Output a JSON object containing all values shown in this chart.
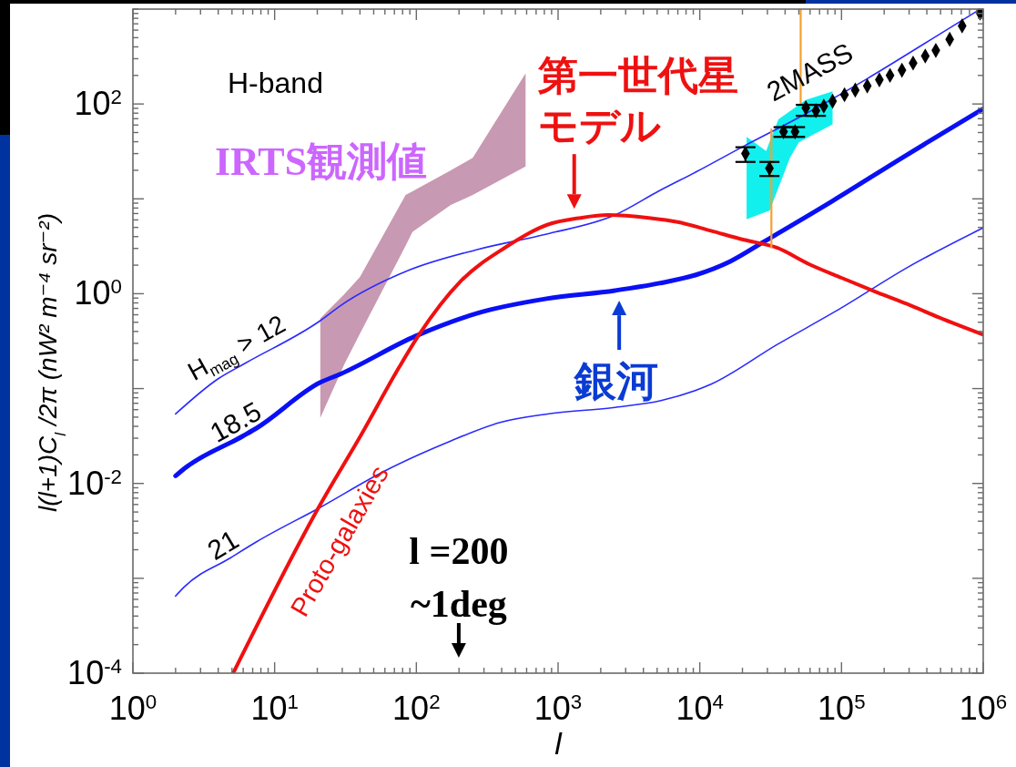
{
  "chart_data": {
    "type": "line",
    "log": "xy",
    "xlabel": "l",
    "ylabel": "l(l+1)C$_{l}$ /2π (nW² m⁻⁴ sr⁻²)",
    "xlim": [
      1,
      1000000
    ],
    "ylim": [
      0.0001,
      1000
    ],
    "xticks": [
      {
        "value": 1,
        "label": "10$^{0}$"
      },
      {
        "value": 10,
        "label": "10$^{1}$"
      },
      {
        "value": 100,
        "label": "10$^{2}$"
      },
      {
        "value": 1000,
        "label": "10$^{3}$"
      },
      {
        "value": 10000,
        "label": "10$^{4}$"
      },
      {
        "value": 100000,
        "label": "10$^{5}$"
      },
      {
        "value": 1000000,
        "label": "10$^{6}$"
      }
    ],
    "yticks": [
      {
        "value": 0.0001,
        "label": "10$^{-4}$"
      },
      {
        "value": 0.001,
        "label": null
      },
      {
        "value": 0.01,
        "label": "10$^{-2}$"
      },
      {
        "value": 0.1,
        "label": null
      },
      {
        "value": 1,
        "label": "10$^{0}$"
      },
      {
        "value": 10,
        "label": null
      },
      {
        "value": 100,
        "label": "10$^{2}$"
      }
    ],
    "annotations": [
      "H-band",
      "IRTS観測値",
      {
        "text": "第一世代星モデル",
        "x": 1300,
        "y": 6.3
      },
      {
        "text": "銀河",
        "x": 2700,
        "y": 1.1
      },
      "l =200 ~1deg",
      {
        "text": "H$_{mag}$ > 12",
        "x": 6.2,
        "y": 0.185
      },
      {
        "text": "18.5",
        "x": 6,
        "y": 0.0317
      },
      {
        "text": "21",
        "x": 4.9,
        "y": 0.00165
      }
    ],
    "series": [
      {
        "type": "area",
        "color": "#c899b2",
        "x": [
          21,
          31,
          40,
          84,
          94,
          175,
          250,
          590
        ],
        "values": [
          null,
          null,
          null,
          null,
          null,
          null,
          null,
          null
        ],
        "lower": [
          0.049,
          0.18,
          0.38,
          3.2,
          4.5,
          8.6,
          11,
          22
        ],
        "upper": [
          0.55,
          0.99,
          1.5,
          11,
          12,
          20,
          27,
          210
        ]
      },
      {
        "type": "area",
        "color": "#12f0ee",
        "x": [
          21400,
          29400,
          31100,
          35900,
          43300,
          50000,
          55800,
          86500
        ],
        "values": [
          null,
          null,
          null,
          null,
          null,
          null,
          null,
          null
        ],
        "lower": [
          6.1,
          7.3,
          7.5,
          13.1,
          27,
          39.5,
          43,
          61
        ],
        "upper": [
          45,
          32,
          40,
          69,
          84,
          98,
          110,
          136
        ]
      },
      {
        "color": "#2a2aff",
        "x": [
          2,
          4,
          6.2,
          21,
          29,
          88,
          269,
          830,
          2520,
          5200,
          9400,
          20500,
          50000,
          152000,
          460000,
          900000
        ],
        "values": [
          0.054,
          0.127,
          0.185,
          0.52,
          0.743,
          1.76,
          2.92,
          4.25,
          6.75,
          12.2,
          19.2,
          36,
          72,
          185,
          511,
          950
        ]
      },
      {
        "color": "#0a10f5",
        "x": [
          2,
          2.3,
          6,
          7.5,
          21,
          29,
          99,
          269,
          830,
          2520,
          5200,
          9400,
          16400,
          28500,
          86500,
          267000,
          490000,
          1000000
        ],
        "values": [
          0.012,
          0.0143,
          0.0317,
          0.0385,
          0.116,
          0.142,
          0.358,
          0.622,
          0.886,
          1.08,
          1.29,
          1.58,
          2.19,
          3.55,
          9.5,
          27,
          47,
          89
        ]
      },
      {
        "color": "#2a2aff",
        "x": [
          2,
          2.3,
          4.9,
          7.5,
          21,
          59,
          165,
          390,
          840,
          2450,
          5400,
          12000,
          35000,
          100000,
          290000,
          1000000
        ],
        "values": [
          0.00065,
          0.00081,
          0.00165,
          0.00244,
          0.0056,
          0.0134,
          0.027,
          0.044,
          0.054,
          0.063,
          0.075,
          0.111,
          0.29,
          0.71,
          1.88,
          4.95
        ]
      },
      {
        "name": "Proto-galaxies",
        "color": "#f01010",
        "x": [
          5.1,
          21,
          41,
          76,
          105,
          205,
          421,
          830,
          1440,
          2250,
          4370,
          7000,
          12000,
          20500,
          35000,
          59000,
          100000,
          171000,
          290000,
          490000,
          1000000
        ],
        "values": [
          0.0001,
          0.006,
          0.033,
          0.17,
          0.374,
          1.35,
          3.05,
          5.3,
          6.3,
          6.75,
          6.3,
          5.7,
          4.6,
          3.7,
          3.05,
          2.05,
          1.47,
          1.06,
          0.78,
          0.56,
          0.37
        ]
      },
      {
        "color": "#f5a030",
        "x": [
          51500,
          51500
        ],
        "values": [
          1000,
          100
        ]
      },
      {
        "color": "#f5a030",
        "x": [
          32000,
          32000
        ],
        "values": [
          54,
          3.07
        ]
      },
      {
        "name": "2MASS",
        "type": "scatter",
        "marker": "diamond",
        "color": "#000000",
        "x": [
          21000,
          31000,
          39000,
          47000,
          56000,
          66000,
          75000,
          86500,
          105000,
          125000,
          152000,
          185000,
          220000,
          267000,
          320000,
          390000,
          463000,
          580000,
          710000,
          950000
        ],
        "values": [
          30,
          21,
          51,
          51,
          91,
          85,
          95,
          107,
          125,
          140,
          155,
          180,
          200,
          227,
          270,
          320,
          367,
          480,
          666,
          908
        ],
        "errors": [
          [
            24.5,
            35
          ],
          [
            17.4,
            24.5
          ],
          [
            45,
            57
          ],
          [
            45,
            57
          ],
          [
            75,
            98
          ],
          [
            75,
            98
          ],
          null,
          null,
          null,
          null,
          null,
          null,
          null,
          null,
          null,
          null,
          null,
          null,
          null,
          null
        ]
      }
    ]
  }
}
